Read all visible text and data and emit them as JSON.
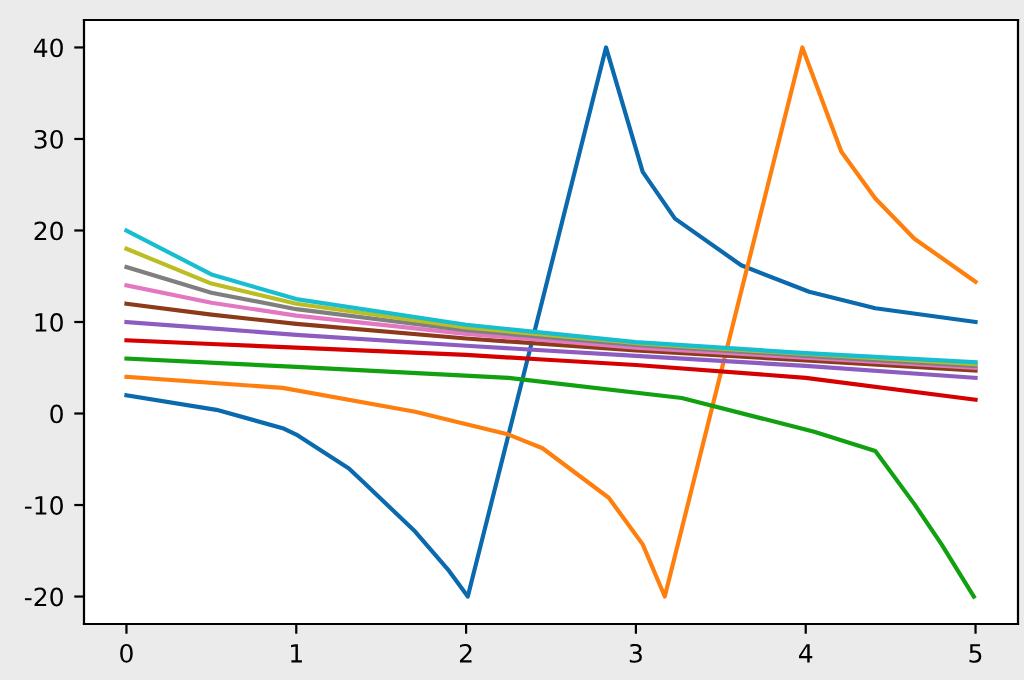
{
  "chart_data": {
    "type": "line",
    "xlim": [
      -0.25,
      5.25
    ],
    "ylim": [
      -23,
      43
    ],
    "xticks": [
      0,
      1,
      2,
      3,
      4,
      5
    ],
    "yticks": [
      -20,
      -10,
      0,
      10,
      20,
      30,
      40
    ],
    "grid": false,
    "legend": false,
    "marker": "none",
    "line_style": "solid",
    "series": [
      {
        "color": "#0a6aad",
        "x": [
          0,
          0.53,
          0.92,
          1.0,
          1.31,
          1.39,
          1.7,
          1.9,
          2.01,
          2.824,
          3.04,
          3.23,
          3.62,
          4.02,
          4.41,
          5.0
        ],
        "values": [
          2.0,
          0.4,
          -1.6,
          -2.3,
          -6.0,
          -7.4,
          -12.9,
          -17.2,
          -20,
          40,
          26.4,
          21.3,
          16.2,
          13.3,
          11.5,
          10.0
        ]
      },
      {
        "color": "#ff7f0e",
        "x": [
          0,
          0.92,
          1.7,
          2.25,
          2.45,
          2.84,
          3.04,
          3.17,
          3.98,
          4.21,
          4.41,
          4.64,
          5.0
        ],
        "values": [
          4.0,
          2.8,
          0.2,
          -2.3,
          -3.8,
          -9.2,
          -14.3,
          -20,
          40,
          28.6,
          23.5,
          19.1,
          14.4
        ]
      },
      {
        "color": "#10a010",
        "x": [
          0,
          1,
          2.25,
          3.27,
          4.05,
          4.41,
          4.64,
          4.8,
          4.99
        ],
        "values": [
          6.0,
          5.1,
          3.9,
          1.7,
          -2.0,
          -4.1,
          -9.9,
          -14.3,
          -20
        ]
      },
      {
        "color": "#d60000",
        "x": [
          0,
          0.5,
          1,
          2,
          2.45,
          3,
          4,
          5
        ],
        "values": [
          8,
          7.6,
          7.2,
          6.4,
          5.9,
          5.3,
          3.9,
          1.5
        ]
      },
      {
        "color": "#8c5cc0",
        "x": [
          0,
          0.5,
          1,
          2,
          3,
          4,
          5
        ],
        "values": [
          10,
          9.3,
          8.6,
          7.4,
          6.3,
          5.2,
          3.9
        ]
      },
      {
        "color": "#8c3a1a",
        "x": [
          0,
          0.5,
          1,
          2,
          3,
          4,
          5
        ],
        "values": [
          12,
          10.8,
          9.8,
          8.2,
          6.9,
          5.8,
          4.7
        ]
      },
      {
        "color": "#e377c2",
        "x": [
          0,
          0.5,
          1,
          2,
          3,
          4,
          5
        ],
        "values": [
          14,
          12.1,
          10.7,
          8.7,
          7.2,
          6.1,
          5.0
        ]
      },
      {
        "color": "#7f7f7f",
        "x": [
          0,
          0.5,
          1,
          2,
          3,
          4,
          5
        ],
        "values": [
          16,
          13.2,
          11.4,
          9.1,
          7.5,
          6.3,
          5.2
        ]
      },
      {
        "color": "#bcbd22",
        "x": [
          0,
          0.5,
          1,
          2,
          3,
          4,
          5
        ],
        "values": [
          18,
          14.2,
          12.0,
          9.4,
          7.7,
          6.5,
          5.4
        ]
      },
      {
        "color": "#17becf",
        "x": [
          0,
          0.5,
          1,
          2,
          3,
          4,
          5
        ],
        "values": [
          20,
          15.2,
          12.5,
          9.7,
          7.8,
          6.6,
          5.6
        ]
      }
    ]
  }
}
